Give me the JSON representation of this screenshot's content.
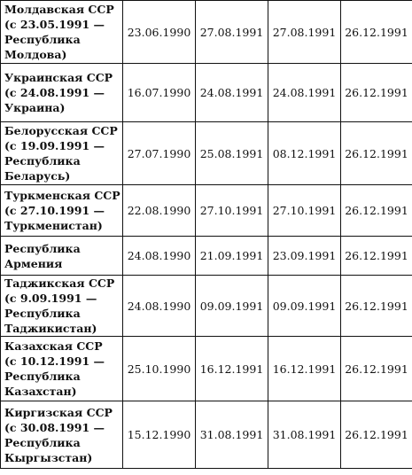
{
  "table": {
    "rows": [
      {
        "name_lines": [
          "Молдавская ССР",
          "(с 23.05.1991 —",
          "Республика",
          "Молдова)"
        ],
        "dates": [
          "23.06.1990",
          "27.08.1991",
          "27.08.1991",
          "26.12.1991"
        ]
      },
      {
        "name_lines": [
          "Украинская ССР",
          "(с 24.08.1991 —",
          "Украина)"
        ],
        "dates": [
          "16.07.1990",
          "24.08.1991",
          "24.08.1991",
          "26.12.1991"
        ]
      },
      {
        "name_lines": [
          "Белорусская ССР",
          "(с 19.09.1991 —",
          "Республика",
          "Беларусь)"
        ],
        "dates": [
          "27.07.1990",
          "25.08.1991",
          "08.12.1991",
          "26.12.1991"
        ]
      },
      {
        "name_lines": [
          "Туркменская ССР",
          "(с 27.10.1991 —",
          "Туркменистан)"
        ],
        "dates": [
          "22.08.1990",
          "27.10.1991",
          "27.10.1991",
          "26.12.1991"
        ]
      },
      {
        "name_lines": [
          "Республика",
          "Армения"
        ],
        "dates": [
          "24.08.1990",
          "21.09.1991",
          "23.09.1991",
          "26.12.1991"
        ]
      },
      {
        "name_lines": [
          "Таджикская ССР",
          "(с 9.09.1991 —",
          "Республика",
          "Таджикистан)"
        ],
        "dates": [
          "24.08.1990",
          "09.09.1991",
          "09.09.1991",
          "26.12.1991"
        ]
      },
      {
        "name_lines": [
          "Казахская ССР",
          "(с 10.12.1991 —",
          "Республика",
          "Казахстан)"
        ],
        "dates": [
          "25.10.1990",
          "16.12.1991",
          "16.12.1991",
          "26.12.1991"
        ]
      },
      {
        "name_lines": [
          "Киргизская ССР",
          "(с 30.08.1991 —",
          "Республика",
          "Кыргызстан)"
        ],
        "dates": [
          "15.12.1990",
          "31.08.1991",
          "31.08.1991",
          "26.12.1991"
        ]
      }
    ]
  }
}
